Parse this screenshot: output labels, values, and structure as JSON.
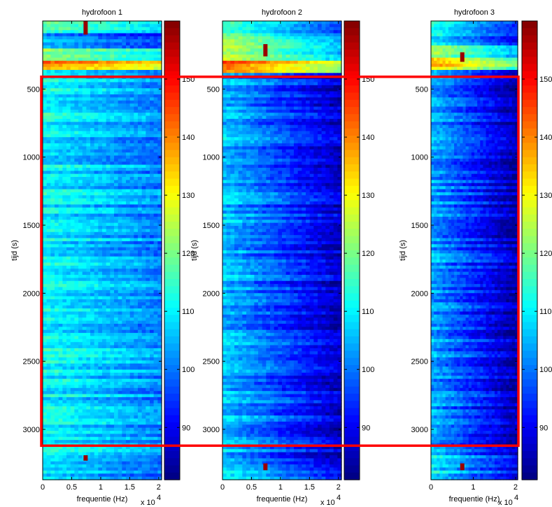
{
  "chart_data": [
    {
      "type": "heatmap",
      "title": "hydrofoon 1",
      "xlabel": "frequentie (Hz)",
      "ylabel": "tijd (s)",
      "x_multiplier_label": "x 10",
      "x_multiplier_exp": "4",
      "xlim": [
        0,
        2.05
      ],
      "ylim": [
        3370,
        0
      ],
      "xticks": [
        0,
        0.5,
        1,
        1.5,
        2
      ],
      "xtick_labels": [
        "0",
        "0.5",
        "1",
        "1.5",
        "2"
      ],
      "yticks": [
        500,
        1000,
        1500,
        2000,
        2500,
        3000
      ],
      "ytick_labels": [
        "500",
        "1000",
        "1500",
        "2000",
        "2500",
        "3000"
      ],
      "colorbar": {
        "clim": [
          81,
          160
        ],
        "ticks": [
          90,
          100,
          110,
          120,
          130,
          140,
          150
        ],
        "tick_labels": [
          "90",
          "100",
          "110",
          "120",
          "130",
          "140",
          "150"
        ]
      },
      "colormap": "jet",
      "bands": [
        {
          "y": [
            0,
            80
          ],
          "value": 118
        },
        {
          "y": [
            80,
            200
          ],
          "value": 103
        },
        {
          "y": [
            200,
            290
          ],
          "value": 124
        },
        {
          "y": [
            290,
            360
          ],
          "value": 140
        },
        {
          "y": [
            360,
            3310
          ],
          "value": 111
        },
        {
          "y": [
            3310,
            3370
          ],
          "value": 108
        }
      ],
      "tones": [
        {
          "x": 0.74,
          "y": [
            0,
            100
          ],
          "value": 158
        },
        {
          "x": 0.74,
          "y": [
            3190,
            3230
          ],
          "value": 158
        }
      ]
    },
    {
      "type": "heatmap",
      "title": "hydrofoon 2",
      "xlabel": "frequentie (Hz)",
      "ylabel": "tijd (s)",
      "x_multiplier_label": "x 10",
      "x_multiplier_exp": "4",
      "xlim": [
        0,
        2.05
      ],
      "ylim": [
        3370,
        0
      ],
      "xticks": [
        0,
        0.5,
        1,
        1.5,
        2
      ],
      "xtick_labels": [
        "0",
        "0.5",
        "1",
        "1.5",
        "2"
      ],
      "yticks": [
        500,
        1000,
        1500,
        2000,
        2500,
        3000
      ],
      "ytick_labels": [
        "500",
        "1000",
        "1500",
        "2000",
        "2500",
        "3000"
      ],
      "colorbar": {
        "clim": [
          81,
          160
        ],
        "ticks": [
          90,
          100,
          110,
          120,
          130,
          140,
          150
        ],
        "tick_labels": [
          "90",
          "100",
          "110",
          "120",
          "130",
          "140",
          "150"
        ]
      },
      "colormap": "jet",
      "bands": [
        {
          "y": [
            0,
            110
          ],
          "value": 115
        },
        {
          "y": [
            110,
            300
          ],
          "value": 124
        },
        {
          "y": [
            300,
            380
          ],
          "value": 145
        },
        {
          "y": [
            380,
            3220
          ],
          "value": 106
        },
        {
          "y": [
            3220,
            3370
          ],
          "value": 108
        }
      ],
      "tones": [
        {
          "x": 0.74,
          "y": [
            170,
            260
          ],
          "value": 158
        },
        {
          "x": 0.74,
          "y": [
            3250,
            3300
          ],
          "value": 158
        }
      ]
    },
    {
      "type": "heatmap",
      "title": "hydrofoon 3",
      "xlabel": "frequentie (Hz)",
      "ylabel": "tijd (s)",
      "x_multiplier_label": "x 10",
      "x_multiplier_exp": "4",
      "xlim": [
        0,
        2.05
      ],
      "ylim": [
        3370,
        0
      ],
      "xticks": [
        0,
        1,
        2
      ],
      "xtick_labels": [
        "0",
        "1",
        "2"
      ],
      "yticks": [
        500,
        1000,
        1500,
        2000,
        2500,
        3000
      ],
      "ytick_labels": [
        "500",
        "1000",
        "1500",
        "2000",
        "2500",
        "3000"
      ],
      "colorbar": {
        "clim": [
          81,
          160
        ],
        "ticks": [
          90,
          100,
          110,
          120,
          130,
          140,
          150
        ],
        "tick_labels": [
          "90",
          "100",
          "110",
          "120",
          "130",
          "140",
          "150"
        ]
      },
      "colormap": "jet",
      "bands": [
        {
          "y": [
            0,
            170
          ],
          "value": 112
        },
        {
          "y": [
            170,
            260
          ],
          "value": 122
        },
        {
          "y": [
            260,
            360
          ],
          "value": 136
        },
        {
          "y": [
            360,
            3180
          ],
          "value": 104
        },
        {
          "y": [
            3180,
            3370
          ],
          "value": 110
        }
      ],
      "tones": [
        {
          "x": 0.74,
          "y": [
            230,
            300
          ],
          "value": 158
        },
        {
          "x": 0.74,
          "y": [
            3250,
            3300
          ],
          "value": 158
        }
      ]
    }
  ],
  "highlight": {
    "color": "#ff0000",
    "y_range": [
      410,
      3120
    ]
  }
}
